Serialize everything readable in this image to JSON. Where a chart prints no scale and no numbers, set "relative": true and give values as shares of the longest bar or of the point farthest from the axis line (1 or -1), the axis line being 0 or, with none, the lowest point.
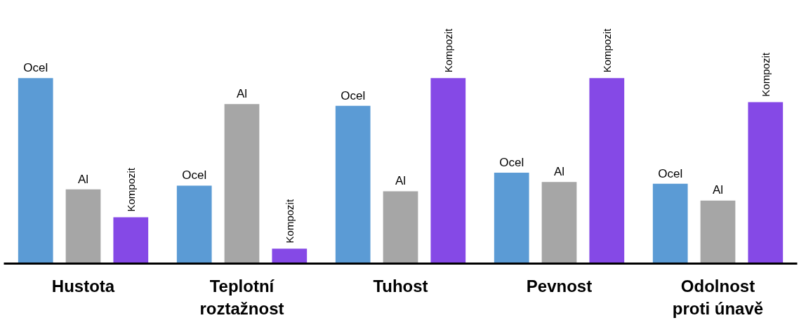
{
  "chart_data": {
    "type": "bar",
    "relative": true,
    "categories": [
      "Hustota",
      "Teplotní\nroztažnost",
      "Tuhost",
      "Pevnost",
      "Odolnost\nproti únavě"
    ],
    "series": [
      {
        "name": "Ocel",
        "color": "#5b9bd5",
        "values": [
          1,
          0.42,
          0.85,
          0.49,
          0.43
        ]
      },
      {
        "name": "Al",
        "color": "#a6a6a6",
        "values": [
          0.4,
          0.86,
          0.39,
          0.44,
          0.34
        ]
      },
      {
        "name": "Kompozit",
        "color": "#8549e6",
        "values": [
          0.25,
          0.08,
          1,
          1,
          0.87
        ]
      }
    ]
  }
}
